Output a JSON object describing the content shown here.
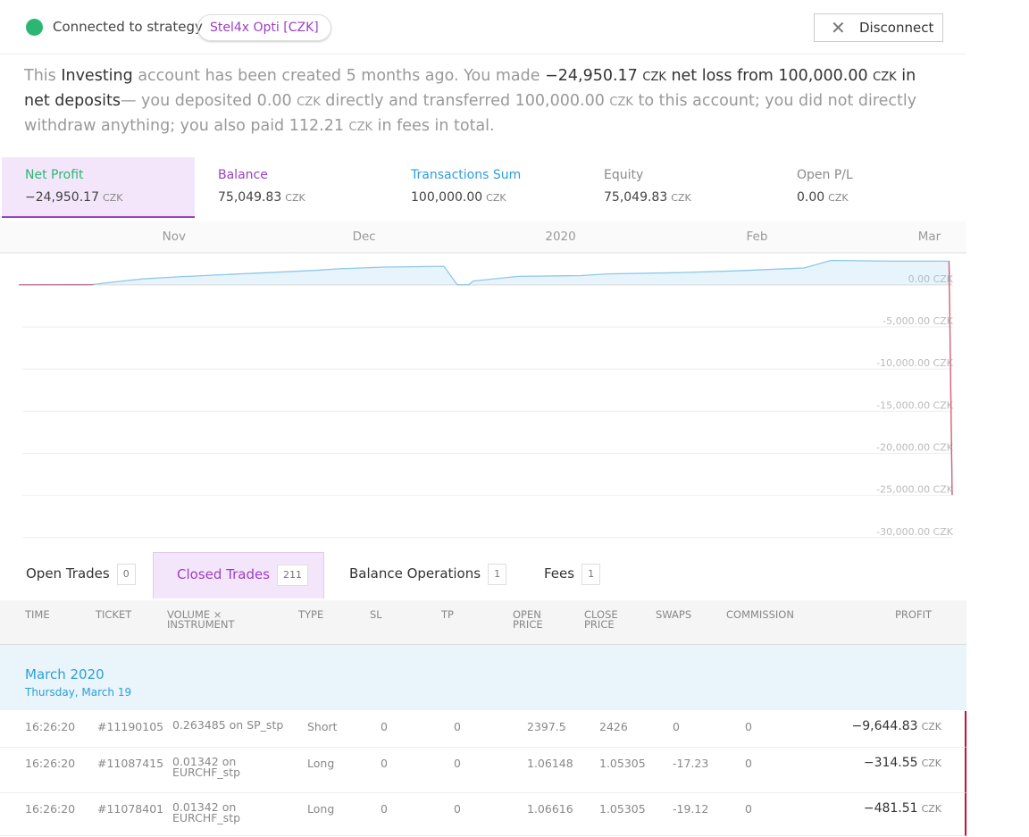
{
  "header": {
    "status": "Connected to strategy",
    "strategy": "Stel4x Opti [CZK]",
    "button": "Disconnect"
  },
  "currency": "CZK",
  "summary": [
    {
      "text": "This ",
      "style": "muted"
    },
    {
      "text": "Investing",
      "style": "strong"
    },
    {
      "text": " account has been created 5 months ago. You made ",
      "style": "muted"
    },
    {
      "text": "−24,950.17 ",
      "style": "strong"
    },
    {
      "text": "CZK",
      "style": "unit"
    },
    {
      "text": " net loss from 100,000.00 ",
      "style": "strong"
    },
    {
      "text": "CZK",
      "style": "unit"
    },
    {
      "text": " in net deposits",
      "style": "strong"
    },
    {
      "text": "— you deposited 0.00 ",
      "style": "muted"
    },
    {
      "text": "CZK",
      "style": "unit-muted"
    },
    {
      "text": " directly and transferred 100,000.00 ",
      "style": "muted"
    },
    {
      "text": "CZK",
      "style": "unit-muted"
    },
    {
      "text": " to this account; you did not directly withdraw anything; you also paid 112.21 ",
      "style": "muted"
    },
    {
      "text": "CZK",
      "style": "unit-muted"
    },
    {
      "text": " in fees in total.",
      "style": "muted"
    }
  ],
  "stats": [
    {
      "label": "Net Profit",
      "value": "−24,950.17",
      "color": "#2bb673",
      "active": true
    },
    {
      "label": "Balance",
      "value": "75,049.83",
      "color": "#9b3fc4",
      "active": false
    },
    {
      "label": "Transactions Sum",
      "value": "100,000.00",
      "color": "#2d9fd8",
      "active": false
    },
    {
      "label": "Equity",
      "value": "75,049.83",
      "color": "#8a8a8a",
      "active": false
    },
    {
      "label": "Open P/L",
      "value": "0.00",
      "color": "#8a8a8a",
      "active": false
    }
  ],
  "chart_data": {
    "type": "line",
    "color": "#8ec8ea",
    "negative_color": "#e05a70",
    "grid": true,
    "x": [
      -24.5,
      -12.7,
      -9.2,
      -4.9,
      0.7,
      7.8,
      14.8,
      21.9,
      26.1,
      33.1,
      42.6,
      44.7,
      46.5,
      47.2,
      54.3,
      64.2,
      68.4,
      79.7,
      88.2,
      99.4,
      103.7,
      113.5,
      122.3,
      122.8
    ],
    "values": [
      0,
      50,
      350,
      700,
      950,
      1200,
      1450,
      1700,
      1900,
      2100,
      2200,
      0,
      0,
      450,
      1000,
      1100,
      1300,
      1450,
      1650,
      2000,
      2900,
      2800,
      2800,
      -24950
    ],
    "xlim": [
      -24.5,
      122.8
    ],
    "xticks": [
      {
        "value": 0,
        "label": "Nov"
      },
      {
        "value": 30,
        "label": "Dec"
      },
      {
        "value": 61,
        "label": "2020"
      },
      {
        "value": 92,
        "label": "Feb"
      },
      {
        "value": 121,
        "label": "Mar"
      }
    ],
    "ylim": [
      -31400,
      3800
    ],
    "yticks": [
      {
        "value": 0,
        "label": "0.00 CZK"
      },
      {
        "value": -5000,
        "label": "-5,000.00 CZK"
      },
      {
        "value": -10000,
        "label": "-10,000.00 CZK"
      },
      {
        "value": -15000,
        "label": "-15,000.00 CZK"
      },
      {
        "value": -20000,
        "label": "-20,000.00 CZK"
      },
      {
        "value": -25000,
        "label": "-25,000.00 CZK"
      },
      {
        "value": -30000,
        "label": "-30,000.00 CZK"
      }
    ]
  },
  "tabs": [
    {
      "label": "Open Trades",
      "count": "0",
      "active": false
    },
    {
      "label": "Closed Trades",
      "count": "211",
      "active": true
    },
    {
      "label": "Balance Operations",
      "count": "1",
      "active": false
    },
    {
      "label": "Fees",
      "count": "1",
      "active": false
    }
  ],
  "table": {
    "columns": [
      "TIME",
      "TICKET",
      "VOLUME × INSTRUMENT",
      "TYPE",
      "SL",
      "TP",
      "OPEN PRICE",
      "CLOSE PRICE",
      "SWAPS",
      "COMMISSION",
      "PROFIT"
    ],
    "joiner": "on",
    "group": {
      "title": "March 2020",
      "subtitle": "Thursday, March 19"
    },
    "rows": [
      {
        "time": "16:26:20",
        "ticket": "#11190105",
        "volume": "0.263485",
        "instrument": "SP_stp",
        "type": "Short",
        "sl": "0",
        "tp": "0",
        "open": "2397.5",
        "close": "2426",
        "swaps": "0",
        "commission": "0",
        "profit": "−9,644.83"
      },
      {
        "time": "16:26:20",
        "ticket": "#11087415",
        "volume": "0.01342",
        "instrument": "EURCHF_stp",
        "type": "Long",
        "sl": "0",
        "tp": "0",
        "open": "1.06148",
        "close": "1.05305",
        "swaps": "-17.23",
        "commission": "0",
        "profit": "−314.55"
      },
      {
        "time": "16:26:20",
        "ticket": "#11078401",
        "volume": "0.01342",
        "instrument": "EURCHF_stp",
        "type": "Long",
        "sl": "0",
        "tp": "0",
        "open": "1.06616",
        "close": "1.05305",
        "swaps": "-19.12",
        "commission": "0",
        "profit": "−481.51"
      }
    ]
  }
}
